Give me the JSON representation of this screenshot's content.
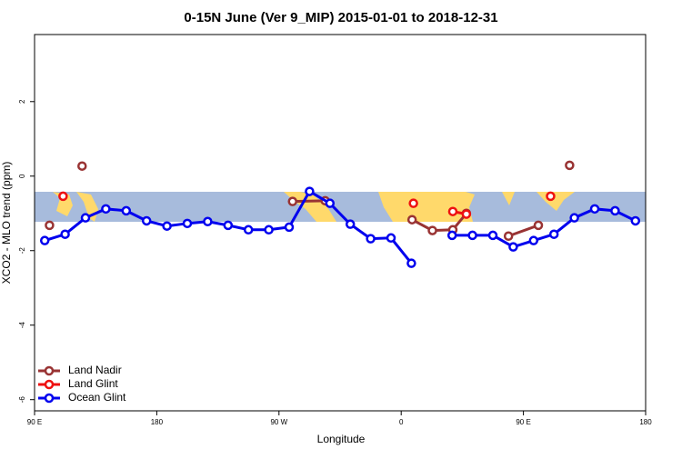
{
  "chart_data": {
    "type": "line",
    "title": "0-15N June (Ver 9_MIP)   2015-01-01 to 2018-12-31",
    "x_label": "Longitude",
    "y_label": "XCO2 - MLO trend (ppm)",
    "xlim": [
      90,
      540
    ],
    "ylim": [
      -6.3,
      3.8
    ],
    "xticks": [
      {
        "value": 90,
        "label": "90 E"
      },
      180,
      {
        "value": 270,
        "label": "90 W"
      },
      {
        "value": 360,
        "label": "0"
      },
      {
        "value": 450,
        "label": "90 E"
      },
      {
        "value": 540,
        "label": "180"
      }
    ],
    "yticks": [
      2,
      0,
      -2,
      -4,
      -6
    ],
    "legend": "bottom-left",
    "series": [
      {
        "name": "Land Nadir",
        "color": "#993333",
        "x": [
          101,
          null,
          125,
          null,
          280,
          304,
          null,
          368,
          383,
          398,
          408,
          null,
          439,
          461,
          null,
          484
        ],
        "values": [
          -1.32,
          null,
          0.27,
          null,
          -0.68,
          -0.66,
          null,
          -1.17,
          -1.46,
          -1.44,
          -1.0,
          null,
          -1.61,
          -1.32,
          null,
          0.29
        ]
      },
      {
        "name": "Land Glint",
        "color": "#ee1111",
        "x": [
          111,
          null,
          369,
          null,
          398,
          408,
          null,
          470
        ],
        "values": [
          -0.54,
          null,
          -0.73,
          null,
          -0.95,
          -1.02,
          null,
          -0.54
        ]
      },
      {
        "name": "Ocean Glint",
        "color": "#0000ee",
        "x": [
          97.5,
          112.5,
          127.5,
          142.5,
          157.5,
          172.5,
          187.5,
          202.5,
          217.5,
          232.5,
          247.5,
          262.5,
          277.5,
          292.5,
          307.5,
          322.5,
          337.5,
          352.5,
          367.5,
          null,
          397.5,
          412.5,
          427.5,
          442.5,
          457.5,
          472.5,
          487.5,
          502.5,
          517.5,
          532.5
        ],
        "values": [
          -1.73,
          -1.56,
          -1.12,
          -0.88,
          -0.93,
          -1.2,
          -1.34,
          -1.27,
          -1.22,
          -1.32,
          -1.44,
          -1.44,
          -1.37,
          -0.41,
          -0.73,
          -1.29,
          -1.68,
          -1.66,
          -2.34,
          null,
          -1.59,
          -1.59,
          -1.59,
          -1.9,
          -1.73,
          -1.56,
          -1.12,
          -0.88,
          -0.93,
          -1.2
        ]
      }
    ]
  }
}
